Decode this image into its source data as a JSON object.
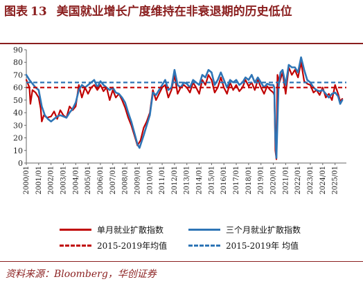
{
  "header": {
    "figure_label": "图表",
    "figure_number": "13",
    "title": "美国就业增长广度维持在非衰退期的历史低位"
  },
  "source_text": "资料来源：Bloomberg，华创证券",
  "colors": {
    "red": "#c00000",
    "blue": "#2e75b6",
    "frame": "#8a1e1e",
    "axis": "#666666"
  },
  "chart_data": {
    "type": "line",
    "ylim": [
      0,
      90
    ],
    "yticks": [
      0,
      10,
      20,
      30,
      40,
      50,
      60,
      70,
      80,
      90
    ],
    "xlim": [
      "2000-01",
      "2025-12"
    ],
    "xtick_labels": [
      "2000/01",
      "2001/01",
      "2002/01",
      "2003/01",
      "2004/01",
      "2005/01",
      "2006/01",
      "2007/01",
      "2008/01",
      "2009/01",
      "2010/01",
      "2011/01",
      "2012/01",
      "2013/01",
      "2014/01",
      "2015/01",
      "2016/01",
      "2017/01",
      "2018/01",
      "2019/01",
      "2020/01",
      "2021/01",
      "2022/01",
      "2023/01",
      "2024/01",
      "2025/01"
    ],
    "legend_position": "bottom",
    "series": [
      {
        "name": "单月就业扩散指数",
        "color": "#c00000",
        "style": "solid",
        "points": [
          [
            "2000-01",
            66
          ],
          [
            "2000-04",
            60
          ],
          [
            "2000-05",
            47
          ],
          [
            "2000-07",
            58
          ],
          [
            "2000-10",
            56
          ],
          [
            "2001-01",
            52
          ],
          [
            "2001-03",
            43
          ],
          [
            "2001-04",
            33
          ],
          [
            "2001-06",
            38
          ],
          [
            "2001-09",
            36
          ],
          [
            "2002-01",
            37
          ],
          [
            "2002-04",
            41
          ],
          [
            "2002-07",
            35
          ],
          [
            "2002-10",
            42
          ],
          [
            "2003-01",
            38
          ],
          [
            "2003-04",
            36
          ],
          [
            "2003-07",
            45
          ],
          [
            "2003-10",
            42
          ],
          [
            "2004-01",
            45
          ],
          [
            "2004-04",
            62
          ],
          [
            "2004-07",
            52
          ],
          [
            "2004-10",
            60
          ],
          [
            "2005-01",
            55
          ],
          [
            "2005-04",
            60
          ],
          [
            "2005-07",
            62
          ],
          [
            "2005-10",
            58
          ],
          [
            "2006-01",
            62
          ],
          [
            "2006-04",
            57
          ],
          [
            "2006-07",
            60
          ],
          [
            "2006-10",
            50
          ],
          [
            "2007-01",
            58
          ],
          [
            "2007-04",
            52
          ],
          [
            "2007-07",
            55
          ],
          [
            "2007-10",
            50
          ],
          [
            "2008-01",
            44
          ],
          [
            "2008-04",
            36
          ],
          [
            "2008-07",
            30
          ],
          [
            "2008-10",
            22
          ],
          [
            "2009-01",
            14
          ],
          [
            "2009-04",
            18
          ],
          [
            "2009-07",
            28
          ],
          [
            "2009-10",
            33
          ],
          [
            "2010-01",
            40
          ],
          [
            "2010-04",
            58
          ],
          [
            "2010-07",
            50
          ],
          [
            "2010-10",
            55
          ],
          [
            "2011-01",
            60
          ],
          [
            "2011-04",
            62
          ],
          [
            "2011-07",
            52
          ],
          [
            "2011-10",
            58
          ],
          [
            "2012-01",
            70
          ],
          [
            "2012-04",
            55
          ],
          [
            "2012-07",
            60
          ],
          [
            "2012-10",
            62
          ],
          [
            "2013-01",
            60
          ],
          [
            "2013-04",
            56
          ],
          [
            "2013-07",
            64
          ],
          [
            "2013-10",
            60
          ],
          [
            "2014-01",
            55
          ],
          [
            "2014-04",
            66
          ],
          [
            "2014-07",
            62
          ],
          [
            "2014-10",
            70
          ],
          [
            "2015-01",
            66
          ],
          [
            "2015-04",
            56
          ],
          [
            "2015-07",
            60
          ],
          [
            "2015-10",
            68
          ],
          [
            "2016-01",
            60
          ],
          [
            "2016-04",
            55
          ],
          [
            "2016-07",
            64
          ],
          [
            "2016-10",
            58
          ],
          [
            "2017-01",
            62
          ],
          [
            "2017-04",
            57
          ],
          [
            "2017-07",
            60
          ],
          [
            "2017-10",
            66
          ],
          [
            "2018-01",
            61
          ],
          [
            "2018-04",
            64
          ],
          [
            "2018-07",
            58
          ],
          [
            "2018-10",
            66
          ],
          [
            "2019-01",
            60
          ],
          [
            "2019-04",
            55
          ],
          [
            "2019-07",
            61
          ],
          [
            "2019-10",
            58
          ],
          [
            "2020-01",
            56
          ],
          [
            "2020-02",
            54
          ],
          [
            "2020-03",
            10
          ],
          [
            "2020-04",
            3
          ],
          [
            "2020-05",
            70
          ],
          [
            "2020-07",
            64
          ],
          [
            "2020-10",
            72
          ],
          [
            "2021-01",
            55
          ],
          [
            "2021-04",
            76
          ],
          [
            "2021-07",
            70
          ],
          [
            "2021-10",
            74
          ],
          [
            "2022-01",
            68
          ],
          [
            "2022-04",
            80
          ],
          [
            "2022-07",
            65
          ],
          [
            "2022-10",
            63
          ],
          [
            "2023-01",
            62
          ],
          [
            "2023-04",
            56
          ],
          [
            "2023-07",
            58
          ],
          [
            "2023-10",
            54
          ],
          [
            "2024-01",
            60
          ],
          [
            "2024-04",
            52
          ],
          [
            "2024-07",
            55
          ],
          [
            "2024-10",
            50
          ],
          [
            "2025-01",
            62
          ],
          [
            "2025-04",
            55
          ],
          [
            "2025-06",
            49
          ],
          [
            "2025-08",
            51
          ]
        ]
      },
      {
        "name": "三个月就业扩散指数",
        "color": "#2e75b6",
        "style": "solid",
        "points": [
          [
            "2000-01",
            70
          ],
          [
            "2000-04",
            66
          ],
          [
            "2000-07",
            63
          ],
          [
            "2000-10",
            60
          ],
          [
            "2001-01",
            58
          ],
          [
            "2001-04",
            45
          ],
          [
            "2001-07",
            38
          ],
          [
            "2001-10",
            35
          ],
          [
            "2002-01",
            33
          ],
          [
            "2002-04",
            35
          ],
          [
            "2002-07",
            37
          ],
          [
            "2002-10",
            38
          ],
          [
            "2003-01",
            37
          ],
          [
            "2003-04",
            36
          ],
          [
            "2003-07",
            40
          ],
          [
            "2003-10",
            43
          ],
          [
            "2004-01",
            48
          ],
          [
            "2004-04",
            58
          ],
          [
            "2004-07",
            62
          ],
          [
            "2004-10",
            60
          ],
          [
            "2005-01",
            62
          ],
          [
            "2005-04",
            64
          ],
          [
            "2005-07",
            66
          ],
          [
            "2005-10",
            60
          ],
          [
            "2006-01",
            65
          ],
          [
            "2006-04",
            62
          ],
          [
            "2006-07",
            60
          ],
          [
            "2006-10",
            58
          ],
          [
            "2007-01",
            60
          ],
          [
            "2007-04",
            56
          ],
          [
            "2007-07",
            55
          ],
          [
            "2007-10",
            52
          ],
          [
            "2008-01",
            48
          ],
          [
            "2008-04",
            40
          ],
          [
            "2008-07",
            33
          ],
          [
            "2008-10",
            24
          ],
          [
            "2009-01",
            15
          ],
          [
            "2009-03",
            12
          ],
          [
            "2009-07",
            22
          ],
          [
            "2009-10",
            30
          ],
          [
            "2010-01",
            38
          ],
          [
            "2010-04",
            56
          ],
          [
            "2010-07",
            54
          ],
          [
            "2010-10",
            58
          ],
          [
            "2011-01",
            62
          ],
          [
            "2011-04",
            66
          ],
          [
            "2011-07",
            58
          ],
          [
            "2011-10",
            60
          ],
          [
            "2012-01",
            74
          ],
          [
            "2012-04",
            62
          ],
          [
            "2012-07",
            60
          ],
          [
            "2012-10",
            64
          ],
          [
            "2013-01",
            63
          ],
          [
            "2013-04",
            60
          ],
          [
            "2013-07",
            66
          ],
          [
            "2013-10",
            64
          ],
          [
            "2014-01",
            62
          ],
          [
            "2014-04",
            70
          ],
          [
            "2014-07",
            68
          ],
          [
            "2014-10",
            74
          ],
          [
            "2015-01",
            72
          ],
          [
            "2015-04",
            62
          ],
          [
            "2015-07",
            66
          ],
          [
            "2015-10",
            72
          ],
          [
            "2016-01",
            66
          ],
          [
            "2016-04",
            60
          ],
          [
            "2016-07",
            66
          ],
          [
            "2016-10",
            64
          ],
          [
            "2017-01",
            66
          ],
          [
            "2017-04",
            62
          ],
          [
            "2017-07",
            64
          ],
          [
            "2017-10",
            68
          ],
          [
            "2018-01",
            66
          ],
          [
            "2018-04",
            70
          ],
          [
            "2018-07",
            64
          ],
          [
            "2018-10",
            68
          ],
          [
            "2019-01",
            64
          ],
          [
            "2019-04",
            60
          ],
          [
            "2019-07",
            63
          ],
          [
            "2019-10",
            62
          ],
          [
            "2020-01",
            62
          ],
          [
            "2020-02",
            60
          ],
          [
            "2020-03",
            20
          ],
          [
            "2020-04",
            4
          ],
          [
            "2020-06",
            60
          ],
          [
            "2020-08",
            72
          ],
          [
            "2020-10",
            74
          ],
          [
            "2021-01",
            62
          ],
          [
            "2021-04",
            78
          ],
          [
            "2021-07",
            76
          ],
          [
            "2021-10",
            76
          ],
          [
            "2022-01",
            72
          ],
          [
            "2022-04",
            84
          ],
          [
            "2022-07",
            74
          ],
          [
            "2022-10",
            66
          ],
          [
            "2023-01",
            64
          ],
          [
            "2023-04",
            60
          ],
          [
            "2023-07",
            58
          ],
          [
            "2023-10",
            57
          ],
          [
            "2024-01",
            58
          ],
          [
            "2024-04",
            55
          ],
          [
            "2024-07",
            52
          ],
          [
            "2024-10",
            55
          ],
          [
            "2025-01",
            56
          ],
          [
            "2025-04",
            53
          ],
          [
            "2025-06",
            47
          ],
          [
            "2025-08",
            50
          ]
        ]
      },
      {
        "name": "2015-2019年均值",
        "color": "#c00000",
        "style": "dashed",
        "value": 60
      },
      {
        "name": "2015-2019年 均值",
        "color": "#2e75b6",
        "style": "dashed",
        "value": 64
      }
    ]
  }
}
